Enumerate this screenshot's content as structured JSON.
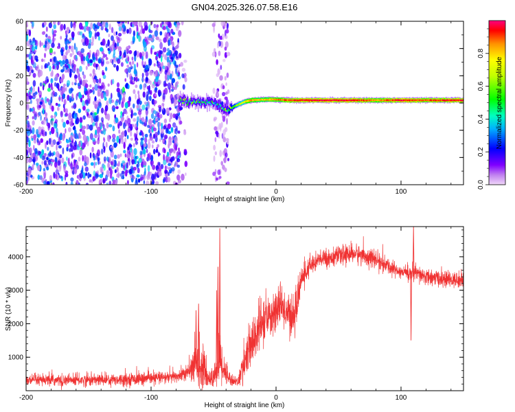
{
  "title": "GN04.2025.326.07.58.E16",
  "chart_data": [
    {
      "type": "heatmap",
      "xlabel": "Height of straight line (km)",
      "ylabel": "Frequency (Hz)",
      "xlim": [
        -200,
        150
      ],
      "ylim": [
        -60,
        60
      ],
      "xticks": [
        -200,
        -100,
        0,
        100
      ],
      "xtick_labels": [
        "-200",
        "-100",
        "0",
        "100"
      ],
      "yticks": [
        -60,
        -40,
        -20,
        0,
        20,
        40,
        60
      ],
      "ytick_labels": [
        "-60",
        "-40",
        "-20",
        "0",
        "20",
        "40",
        "60"
      ],
      "colorbar": {
        "label": "Normalized spectral amplitude",
        "range": [
          0,
          1
        ],
        "ticks": [
          0.0,
          0.2,
          0.4,
          0.6,
          0.8
        ],
        "tick_labels": [
          "0.0",
          "0.2",
          "0.4",
          "0.6",
          "0.8"
        ],
        "colormap": "rainbow"
      },
      "noise_regions": [
        {
          "x_start": -200,
          "x_end": -77,
          "density": 0.85,
          "amplitude": 0.25
        },
        {
          "x_start": -80,
          "x_end": -72,
          "density": 0.3,
          "amplitude": 0.15
        },
        {
          "x_start": -50,
          "x_end": -38,
          "density": 0.55,
          "amplitude": 0.1
        }
      ],
      "signal_track": {
        "x": [
          -78,
          -70,
          -60,
          -50,
          -45,
          -40,
          -35,
          -30,
          -25,
          -20,
          -10,
          0,
          10,
          20,
          40,
          60,
          80,
          100,
          120,
          150
        ],
        "frequency": [
          2,
          1,
          0.5,
          0,
          -2,
          -5,
          -3,
          -1,
          1,
          2,
          2.5,
          2.5,
          2,
          2,
          2,
          2,
          2,
          2,
          2,
          2
        ],
        "amplitude": [
          0.35,
          0.4,
          0.35,
          0.3,
          0.3,
          0.4,
          0.55,
          0.65,
          0.75,
          0.85,
          0.8,
          0.85,
          0.9,
          0.95,
          0.95,
          0.95,
          0.85,
          0.95,
          0.9,
          0.95
        ]
      }
    },
    {
      "type": "line",
      "xlabel": "Height of straight line (km)",
      "ylabel": "SNR (10 * v/v)",
      "xlim": [
        -200,
        150
      ],
      "ylim": [
        0,
        4900
      ],
      "xticks": [
        -200,
        -100,
        0,
        100
      ],
      "xtick_labels": [
        "-200",
        "-100",
        "0",
        "100"
      ],
      "yticks": [
        1000,
        2000,
        3000,
        4000
      ],
      "ytick_labels": [
        "1000",
        "2000",
        "3000",
        "4000"
      ],
      "color": "#f03232",
      "envelope": {
        "x": [
          -200,
          -150,
          -100,
          -80,
          -70,
          -62,
          -55,
          -50,
          -45,
          -40,
          -35,
          -30,
          -25,
          -20,
          -15,
          -10,
          -5,
          0,
          5,
          10,
          15,
          20,
          30,
          40,
          50,
          60,
          70,
          80,
          90,
          100,
          110,
          120,
          130,
          140,
          150
        ],
        "mean": [
          300,
          320,
          360,
          420,
          550,
          900,
          400,
          350,
          1000,
          500,
          300,
          280,
          900,
          1300,
          1800,
          2000,
          2200,
          2400,
          2500,
          2300,
          2200,
          3300,
          3850,
          3950,
          4000,
          4100,
          4050,
          3900,
          3700,
          3550,
          3500,
          3400,
          3350,
          3300,
          3300
        ],
        "spread": [
          180,
          200,
          200,
          200,
          260,
          900,
          350,
          300,
          1000,
          350,
          180,
          160,
          700,
          800,
          900,
          700,
          700,
          700,
          600,
          700,
          700,
          400,
          300,
          300,
          300,
          300,
          320,
          280,
          250,
          230,
          300,
          260,
          260,
          260,
          260
        ]
      },
      "spikes": [
        {
          "x": -45,
          "y": 4850
        },
        {
          "x": -46.5,
          "y": 3700
        },
        {
          "x": -47.5,
          "y": 3000
        },
        {
          "x": 110,
          "y": 4900
        },
        {
          "x": 108,
          "y": 1500
        },
        {
          "x": -64,
          "y": 2400
        },
        {
          "x": -62,
          "y": 2600
        }
      ]
    }
  ]
}
